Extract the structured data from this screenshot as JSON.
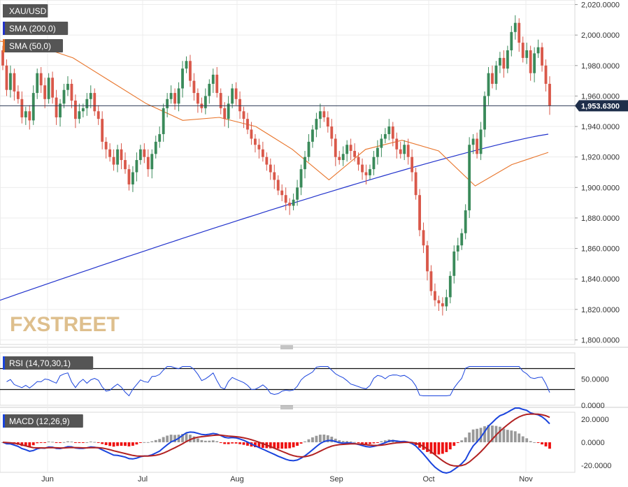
{
  "chart_data": [
    {
      "type": "candlestick",
      "title": "XAU/USD",
      "legend": [
        {
          "label": "XAU/USD",
          "color": "#555555"
        },
        {
          "label": "SMA (200,0)",
          "color": "#2233cc"
        },
        {
          "label": "SMA (50,0)",
          "color": "#e8742a"
        }
      ],
      "x_labels": [
        "Jun",
        "Jul",
        "Aug",
        "Sep",
        "Oct",
        "Nov"
      ],
      "y_ticks": [
        "1,800.0000",
        "1,820.0000",
        "1,840.0000",
        "1,860.0000",
        "1,880.0000",
        "1,900.0000",
        "1,920.0000",
        "1,940.0000",
        "1,960.0000",
        "1,980.0000",
        "2,000.0000",
        "2,020.0000"
      ],
      "ylim": [
        1797,
        2023
      ],
      "last_price_label": "1,953.6300",
      "last_price": 1953.63,
      "up_color": "#3a8a5a",
      "down_color": "#d9584a",
      "close_series": [
        1980,
        1964,
        1975,
        1963,
        1958,
        1946,
        1950,
        1944,
        1962,
        1975,
        1967,
        1958,
        1972,
        1959,
        1946,
        1955,
        1964,
        1968,
        1957,
        1945,
        1950,
        1952,
        1958,
        1962,
        1950,
        1945,
        1930,
        1925,
        1920,
        1915,
        1925,
        1918,
        1912,
        1902,
        1910,
        1918,
        1925,
        1920,
        1912,
        1922,
        1930,
        1935,
        1952,
        1958,
        1962,
        1955,
        1965,
        1978,
        1983,
        1970,
        1962,
        1955,
        1952,
        1960,
        1968,
        1974,
        1962,
        1952,
        1945,
        1955,
        1965,
        1958,
        1950,
        1945,
        1938,
        1932,
        1928,
        1925,
        1920,
        1915,
        1910,
        1905,
        1898,
        1895,
        1890,
        1888,
        1892,
        1900,
        1912,
        1920,
        1930,
        1938,
        1945,
        1950,
        1946,
        1940,
        1932,
        1920,
        1918,
        1922,
        1928,
        1924,
        1920,
        1915,
        1910,
        1908,
        1912,
        1920,
        1926,
        1932,
        1935,
        1940,
        1932,
        1925,
        1922,
        1928,
        1920,
        1910,
        1895,
        1872,
        1862,
        1845,
        1832,
        1826,
        1824,
        1822,
        1828,
        1842,
        1858,
        1862,
        1870,
        1885,
        1928,
        1932,
        1922,
        1938,
        1960,
        1975,
        1968,
        1980,
        1985,
        1978,
        1990,
        2002,
        2008,
        1995,
        1985,
        1990,
        1975,
        1988,
        1992,
        1980,
        1968,
        1953.63
      ],
      "sma_200": {
        "from": 1826,
        "to": 1935
      },
      "sma_50_anchor": [
        1996,
        1993,
        1985,
        1970,
        1955,
        1944,
        1946,
        1940,
        1925,
        1905,
        1925,
        1931,
        1924,
        1901,
        1915,
        1923
      ]
    },
    {
      "type": "line",
      "title": "RSI (14,70,30,1)",
      "y_ticks": [
        "0.0000",
        "50.0000"
      ],
      "levels": [
        70,
        30
      ],
      "ylim": [
        0,
        100
      ]
    },
    {
      "type": "bar",
      "title": "MACD (12,26,9)",
      "y_ticks": [
        "-20.0000",
        "0.0000",
        "20.0000"
      ],
      "ylim": [
        -26,
        26
      ],
      "macd_color": "#1a44dd",
      "signal_color": "#b22222"
    }
  ],
  "watermark": "FXSTREET"
}
